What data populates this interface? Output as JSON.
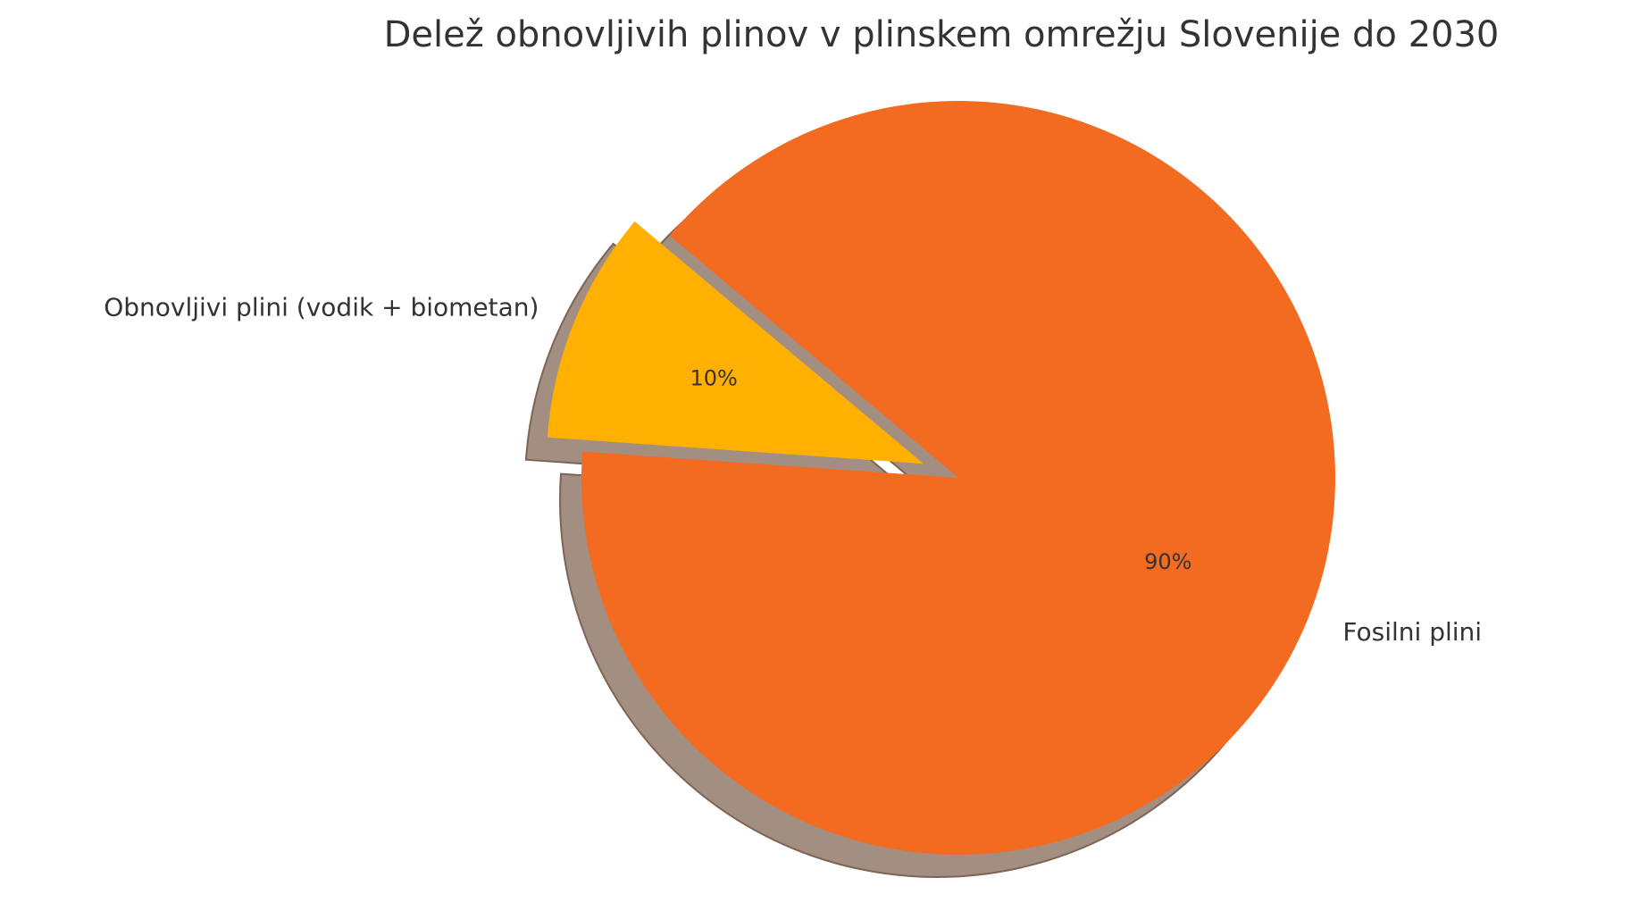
{
  "chart_data": {
    "type": "pie",
    "title": "Delež obnovljivih plinov v plinskem omrežju Slovenije do 2030",
    "categories": [
      "Obnovljivi plini (vodik + biometan)",
      "Fosilni plini"
    ],
    "values": [
      10,
      90
    ],
    "value_labels": [
      "10%",
      "90%"
    ],
    "colors": [
      "#ffb000",
      "#f26b21"
    ]
  }
}
